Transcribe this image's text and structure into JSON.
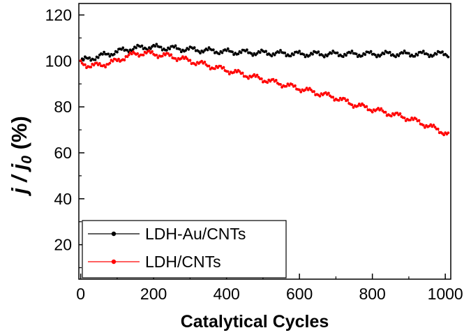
{
  "chart_data": {
    "type": "line",
    "xlabel": "Catalytical Cycles",
    "ylabel": {
      "prefix": "j / j",
      "subscript": "0",
      "suffix": " (%)"
    },
    "xlim": [
      -5,
      1015
    ],
    "ylim": [
      5,
      125
    ],
    "xticks": [
      0,
      200,
      400,
      600,
      800,
      1000
    ],
    "yticks": [
      20,
      40,
      60,
      80,
      100,
      120
    ],
    "legend_position": "bottom-left",
    "series": [
      {
        "name": "LDH-Au/CNTs",
        "color": "#000000",
        "x": [
          0,
          25,
          50,
          75,
          100,
          125,
          150,
          175,
          200,
          250,
          300,
          350,
          400,
          500,
          600,
          700,
          800,
          900,
          1010
        ],
        "values": [
          100,
          101,
          102,
          103,
          104,
          105,
          105.5,
          106,
          106,
          105.5,
          105,
          104.5,
          104,
          103.5,
          103,
          103,
          103,
          103,
          103
        ]
      },
      {
        "name": "LDH/CNTs",
        "color": "#ff0000",
        "x": [
          0,
          25,
          50,
          75,
          100,
          125,
          150,
          175,
          200,
          250,
          300,
          350,
          400,
          450,
          500,
          550,
          600,
          650,
          700,
          750,
          800,
          850,
          900,
          950,
          1010
        ],
        "values": [
          99,
          98,
          98,
          99,
          100,
          102,
          103,
          103.5,
          103,
          102,
          100,
          98,
          96,
          94,
          92,
          90,
          88,
          86,
          84,
          81,
          79,
          77,
          75,
          72,
          68
        ]
      }
    ]
  }
}
